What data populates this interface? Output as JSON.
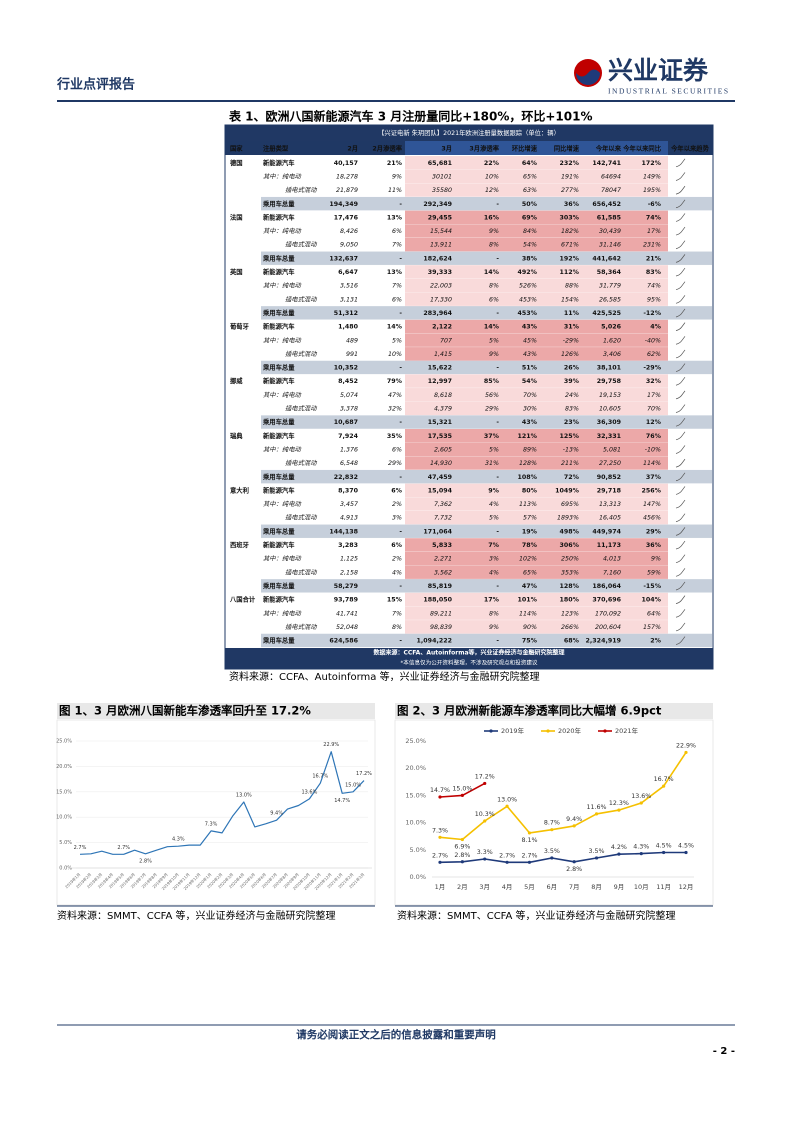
{
  "header": {
    "report_type": "行业点评报告",
    "brand": "兴业证券",
    "brand_en": "INDUSTRIAL SECURITIES"
  },
  "table": {
    "title": "表 1、欧洲八国新能源汽车 3 月注册量同比+180%，环比+101%",
    "banner": "【兴证电新 朱玥团队】2021年欧洲注册量数据跟踪（单位：辆）",
    "columns": [
      "国家",
      "注册类型",
      "2月",
      "2月渗透率",
      "3月",
      "3月渗透率",
      "环比增速",
      "同比增速",
      "今年以来",
      "今年以来同比",
      "今年以来趋势"
    ],
    "groups": [
      {
        "country": "德国",
        "rows": [
          [
            "新能源汽车",
            "40,157",
            "21%",
            "65,681",
            "22%",
            "64%",
            "232%",
            "142,741",
            "172%"
          ],
          [
            "其中：纯电动",
            "18,278",
            "9%",
            "30101",
            "10%",
            "65%",
            "191%",
            "64694",
            "149%"
          ],
          [
            "插电式混动",
            "21,879",
            "11%",
            "35580",
            "12%",
            "63%",
            "277%",
            "78047",
            "195%"
          ],
          [
            "乘用车总量",
            "194,349",
            "-",
            "292,349",
            "-",
            "50%",
            "36%",
            "656,452",
            "-6%"
          ]
        ]
      },
      {
        "country": "法国",
        "rows": [
          [
            "新能源汽车",
            "17,476",
            "13%",
            "29,455",
            "16%",
            "69%",
            "303%",
            "61,585",
            "74%"
          ],
          [
            "其中：纯电动",
            "8,426",
            "6%",
            "15,544",
            "9%",
            "84%",
            "182%",
            "30,439",
            "17%"
          ],
          [
            "插电式混动",
            "9,050",
            "7%",
            "13,911",
            "8%",
            "54%",
            "671%",
            "31,146",
            "231%"
          ],
          [
            "乘用车总量",
            "132,637",
            "-",
            "182,624",
            "-",
            "38%",
            "192%",
            "441,642",
            "21%"
          ]
        ]
      },
      {
        "country": "英国",
        "rows": [
          [
            "新能源汽车",
            "6,647",
            "13%",
            "39,333",
            "14%",
            "492%",
            "112%",
            "58,364",
            "83%"
          ],
          [
            "其中：纯电动",
            "3,516",
            "7%",
            "22,003",
            "8%",
            "526%",
            "88%",
            "31,779",
            "74%"
          ],
          [
            "插电式混动",
            "3,131",
            "6%",
            "17,330",
            "6%",
            "453%",
            "154%",
            "26,585",
            "95%"
          ],
          [
            "乘用车总量",
            "51,312",
            "-",
            "283,964",
            "-",
            "453%",
            "11%",
            "425,525",
            "-12%"
          ]
        ]
      },
      {
        "country": "葡萄牙",
        "rows": [
          [
            "新能源汽车",
            "1,480",
            "14%",
            "2,122",
            "14%",
            "43%",
            "31%",
            "5,026",
            "4%"
          ],
          [
            "其中：纯电动",
            "489",
            "5%",
            "707",
            "5%",
            "45%",
            "-29%",
            "1,620",
            "-40%"
          ],
          [
            "插电式混动",
            "991",
            "10%",
            "1,415",
            "9%",
            "43%",
            "126%",
            "3,406",
            "62%"
          ],
          [
            "乘用车总量",
            "10,352",
            "-",
            "15,622",
            "-",
            "51%",
            "26%",
            "38,101",
            "-29%"
          ]
        ]
      },
      {
        "country": "挪威",
        "rows": [
          [
            "新能源汽车",
            "8,452",
            "79%",
            "12,997",
            "85%",
            "54%",
            "39%",
            "29,758",
            "32%"
          ],
          [
            "其中：纯电动",
            "5,074",
            "47%",
            "8,618",
            "56%",
            "70%",
            "24%",
            "19,153",
            "17%"
          ],
          [
            "插电式混动",
            "3,378",
            "32%",
            "4,379",
            "29%",
            "30%",
            "83%",
            "10,605",
            "70%"
          ],
          [
            "乘用车总量",
            "10,687",
            "-",
            "15,321",
            "-",
            "43%",
            "23%",
            "36,309",
            "12%"
          ]
        ]
      },
      {
        "country": "瑞典",
        "rows": [
          [
            "新能源汽车",
            "7,924",
            "35%",
            "17,535",
            "37%",
            "121%",
            "125%",
            "32,331",
            "76%"
          ],
          [
            "其中：纯电动",
            "1,376",
            "6%",
            "2,605",
            "5%",
            "89%",
            "-13%",
            "5,081",
            "-10%"
          ],
          [
            "插电式混动",
            "6,548",
            "29%",
            "14,930",
            "31%",
            "128%",
            "211%",
            "27,250",
            "114%"
          ],
          [
            "乘用车总量",
            "22,832",
            "-",
            "47,459",
            "-",
            "108%",
            "72%",
            "90,852",
            "37%"
          ]
        ]
      },
      {
        "country": "意大利",
        "rows": [
          [
            "新能源汽车",
            "8,370",
            "6%",
            "15,094",
            "9%",
            "80%",
            "1049%",
            "29,718",
            "256%"
          ],
          [
            "其中：纯电动",
            "3,457",
            "2%",
            "7,362",
            "4%",
            "113%",
            "695%",
            "13,313",
            "147%"
          ],
          [
            "插电式混动",
            "4,913",
            "3%",
            "7,732",
            "5%",
            "57%",
            "1893%",
            "16,405",
            "456%"
          ],
          [
            "乘用车总量",
            "144,138",
            "-",
            "171,064",
            "-",
            "19%",
            "498%",
            "449,974",
            "29%"
          ]
        ]
      },
      {
        "country": "西班牙",
        "rows": [
          [
            "新能源汽车",
            "3,283",
            "6%",
            "5,833",
            "7%",
            "78%",
            "306%",
            "11,173",
            "36%"
          ],
          [
            "其中：纯电动",
            "1,125",
            "2%",
            "2,271",
            "3%",
            "102%",
            "250%",
            "4,013",
            "9%"
          ],
          [
            "插电式混动",
            "2,158",
            "4%",
            "3,562",
            "4%",
            "65%",
            "353%",
            "7,160",
            "59%"
          ],
          [
            "乘用车总量",
            "58,279",
            "-",
            "85,819",
            "-",
            "47%",
            "128%",
            "186,064",
            "-15%"
          ]
        ]
      },
      {
        "country": "八国合计",
        "rows": [
          [
            "新能源汽车",
            "93,789",
            "15%",
            "188,050",
            "17%",
            "101%",
            "180%",
            "370,696",
            "104%"
          ],
          [
            "其中：纯电动",
            "41,741",
            "7%",
            "89,211",
            "8%",
            "114%",
            "123%",
            "170,092",
            "64%"
          ],
          [
            "插电式混动",
            "52,048",
            "8%",
            "98,839",
            "9%",
            "90%",
            "266%",
            "200,604",
            "157%"
          ],
          [
            "乘用车总量",
            "624,586",
            "-",
            "1,094,222",
            "-",
            "75%",
            "68%",
            "2,324,919",
            "2%"
          ]
        ]
      }
    ],
    "notes": [
      "数据来源：CCFA、Autoinforma等，兴业证券经济与金融研究院整理",
      "*本信息仅为公开资料整理，不涉及研究观点和投资建议"
    ],
    "source": "资料来源：CCFA、Autoinforma 等，兴业证券经济与金融研究院整理"
  },
  "chart_data": [
    {
      "type": "line",
      "title": "图 1、3 月欧洲八国新能车渗透率回升至 17.2%",
      "color": "#2e75b6",
      "grid": true,
      "markers": false,
      "categories": [
        "2019年1月",
        "2019年2月",
        "2019年3月",
        "2019年4月",
        "2019年5月",
        "2019年6月",
        "2019年7月",
        "2019年8月",
        "2019年9月",
        "2019年10月",
        "2019年11月",
        "2019年12月",
        "2020年1月",
        "2020年2月",
        "2020年3月",
        "2020年4月",
        "2020年5月",
        "2020年6月",
        "2020年7月",
        "2020年8月",
        "2020年9月",
        "2020年10月",
        "2020年11月",
        "2020年12月",
        "2021年1月",
        "2021年2月",
        "2021年3月"
      ],
      "values": [
        2.7,
        2.8,
        3.3,
        2.7,
        2.7,
        3.5,
        2.8,
        3.5,
        4.2,
        4.3,
        4.5,
        4.5,
        7.3,
        6.9,
        10.3,
        13.0,
        8.1,
        8.7,
        9.4,
        11.6,
        12.3,
        13.6,
        16.7,
        22.9,
        14.7,
        15.0,
        17.2
      ],
      "value_labels": [
        "2.7%",
        null,
        null,
        null,
        "2.7%",
        null,
        "2.8%",
        null,
        null,
        "4.3%",
        null,
        null,
        "7.3%",
        null,
        null,
        "13.0%",
        null,
        null,
        "9.4%",
        null,
        null,
        "13.6%",
        "16.7%",
        "22.9%",
        "14.7%",
        "15.0%",
        "17.2%"
      ],
      "ylim": [
        0,
        25
      ],
      "yticks": [
        {
          "value": 0,
          "label": "0.0%"
        },
        {
          "value": 5,
          "label": "5.0%"
        },
        {
          "value": 10,
          "label": "10.0%"
        },
        {
          "value": 15,
          "label": "15.0%"
        },
        {
          "value": 20,
          "label": "20.0%"
        },
        {
          "value": 25,
          "label": "25.0%"
        }
      ],
      "source": "资料来源：SMMT、CCFA 等，兴业证券经济与金融研究院整理"
    },
    {
      "type": "line",
      "title": "图 2、3 月欧洲新能源车渗透率同比大幅增 6.9pct",
      "grid": false,
      "markers": true,
      "categories": [
        "1月",
        "2月",
        "3月",
        "4月",
        "5月",
        "6月",
        "7月",
        "8月",
        "9月",
        "10月",
        "11月",
        "12月"
      ],
      "series": [
        {
          "name": "2019年",
          "color": "#1f3a7a",
          "values": [
            2.7,
            2.8,
            3.3,
            2.7,
            2.7,
            3.5,
            2.8,
            3.5,
            4.2,
            4.3,
            4.5,
            4.5
          ],
          "value_labels": [
            "2.7%",
            "2.8%",
            "3.3%",
            "2.7%",
            "2.7%",
            "3.5%",
            "2.8%",
            "3.5%",
            "4.2%",
            "4.3%",
            "4.5%",
            "4.5%"
          ]
        },
        {
          "name": "2020年",
          "color": "#f5c000",
          "values": [
            7.3,
            6.9,
            10.3,
            13.0,
            8.1,
            8.7,
            9.4,
            11.6,
            12.3,
            13.6,
            16.7,
            22.9
          ],
          "value_labels": [
            "7.3%",
            "6.9%",
            "10.3%",
            "13.0%",
            "8.1%",
            "8.7%",
            "9.4%",
            "11.6%",
            "12.3%",
            "13.6%",
            "16.7%",
            "22.9%"
          ]
        },
        {
          "name": "2021年",
          "color": "#c00000",
          "values": [
            14.7,
            15.0,
            17.2,
            null,
            null,
            null,
            null,
            null,
            null,
            null,
            null,
            null
          ],
          "value_labels": [
            "14.7%",
            "15.0%",
            "17.2%",
            null,
            null,
            null,
            null,
            null,
            null,
            null,
            null,
            null
          ]
        }
      ],
      "ylim": [
        0,
        25
      ],
      "yticks": [
        {
          "value": 0,
          "label": "0.0%"
        },
        {
          "value": 5,
          "label": "5.0%"
        },
        {
          "value": 10,
          "label": "10.0%"
        },
        {
          "value": 15,
          "label": "15.0%"
        },
        {
          "value": 20,
          "label": "20.0%"
        },
        {
          "value": 25,
          "label": "25.0%"
        }
      ],
      "source": "资料来源：SMMT、CCFA 等，兴业证券经济与金融研究院整理"
    }
  ],
  "footer": {
    "disclaimer": "请务必阅读正文之后的信息披露和重要声明",
    "page": "- 2 -"
  }
}
